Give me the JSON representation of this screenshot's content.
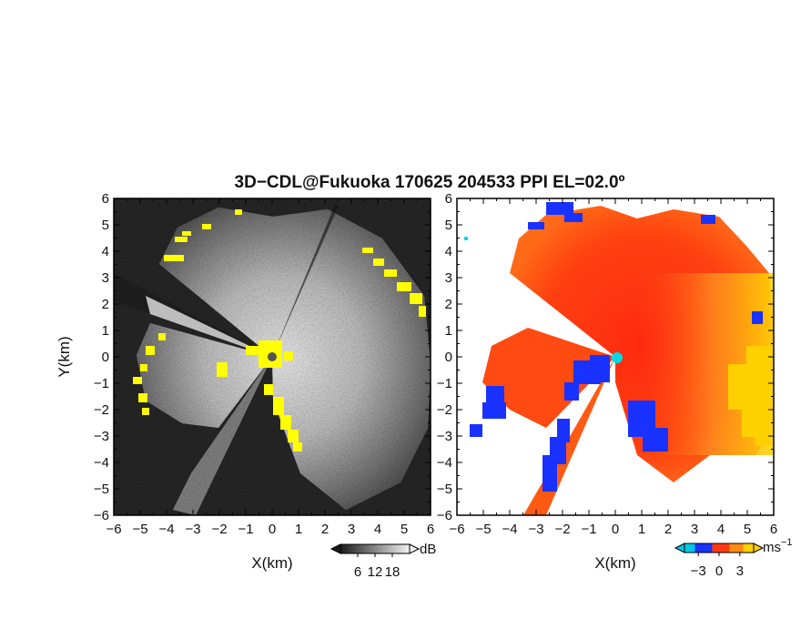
{
  "title": "3D−CDL@Fukuoka 170625 204533 PPI EL=02.0º",
  "chart_data": [
    {
      "type": "heatmap",
      "name": "reflectivity-ppi",
      "xlabel": "X(km)",
      "ylabel": "Y(km)",
      "xlim": [
        -6,
        6
      ],
      "ylim": [
        -6,
        6
      ],
      "xticks": [
        "−6",
        "−5",
        "−4",
        "−3",
        "−2",
        "−1",
        "0",
        "1",
        "2",
        "3",
        "4",
        "5",
        "6"
      ],
      "yticks": [
        "6",
        "5",
        "4",
        "3",
        "2",
        "1",
        "0",
        "−1",
        "−2",
        "−3",
        "−4",
        "−5",
        "−6"
      ],
      "colorbar": {
        "unit": "dB",
        "ticks": [
          "6",
          "12",
          "18"
        ],
        "tick_values": [
          6,
          12,
          18
        ],
        "range": [
          0,
          24
        ]
      },
      "colors": {
        "low": "#1a1a1a",
        "high": "#f2f2f2",
        "flag": "#ffff00",
        "center": "#555555"
      }
    },
    {
      "type": "heatmap",
      "name": "velocity-ppi",
      "xlabel": "X(km)",
      "xlim": [
        -6,
        6
      ],
      "ylim": [
        -6,
        6
      ],
      "xticks": [
        "−6",
        "−5",
        "−4",
        "−3",
        "−2",
        "−1",
        "0",
        "1",
        "2",
        "3",
        "4",
        "5",
        "6"
      ],
      "yticks": [
        "6",
        "5",
        "4",
        "3",
        "2",
        "1",
        "0",
        "−1",
        "−2",
        "−3",
        "−4",
        "−5",
        "−6"
      ],
      "colorbar": {
        "unit": "ms",
        "unit_exp": "−1",
        "ticks": [
          "−3",
          "0",
          "3"
        ],
        "tick_values": [
          -3,
          0,
          3
        ],
        "range": [
          -5,
          5
        ]
      },
      "colors": {
        "negative": "#1a32ff",
        "near_zero": "#ff3a10",
        "positive": "#ffd000",
        "center": "#00d8e6"
      }
    }
  ]
}
